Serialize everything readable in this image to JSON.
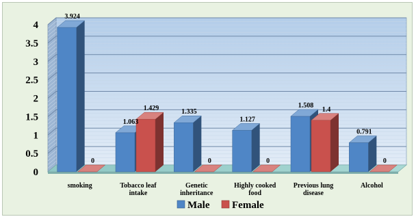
{
  "chart_data": {
    "type": "bar",
    "title": "",
    "xlabel": "",
    "ylabel": "",
    "ylim": [
      0,
      4
    ],
    "yticks": [
      "0",
      "0.5",
      "1",
      "1.5",
      "2",
      "2.5",
      "3",
      "3.5",
      "4"
    ],
    "grid": true,
    "legend_position": "bottom",
    "categories": [
      [
        "smoking"
      ],
      [
        "Tobacco leaf",
        "intake"
      ],
      [
        "Genetic",
        "inheritance"
      ],
      [
        "Highly cooked",
        "food"
      ],
      [
        "Previous lung",
        "disease"
      ],
      [
        "Alcohol"
      ]
    ],
    "series": [
      {
        "name": "Male",
        "color": "#4f86c6",
        "values": [
          3.924,
          1.063,
          1.335,
          1.127,
          1.508,
          0.791
        ],
        "labels": [
          "3.924",
          "1.063",
          "1.335",
          "1.127",
          "1.508",
          "0.791"
        ]
      },
      {
        "name": "Female",
        "color": "#c9514d",
        "values": [
          0,
          1.429,
          0,
          0,
          1.4,
          0
        ],
        "labels": [
          "0",
          "1.429",
          "0",
          "0",
          "1.4",
          "0"
        ]
      }
    ]
  }
}
